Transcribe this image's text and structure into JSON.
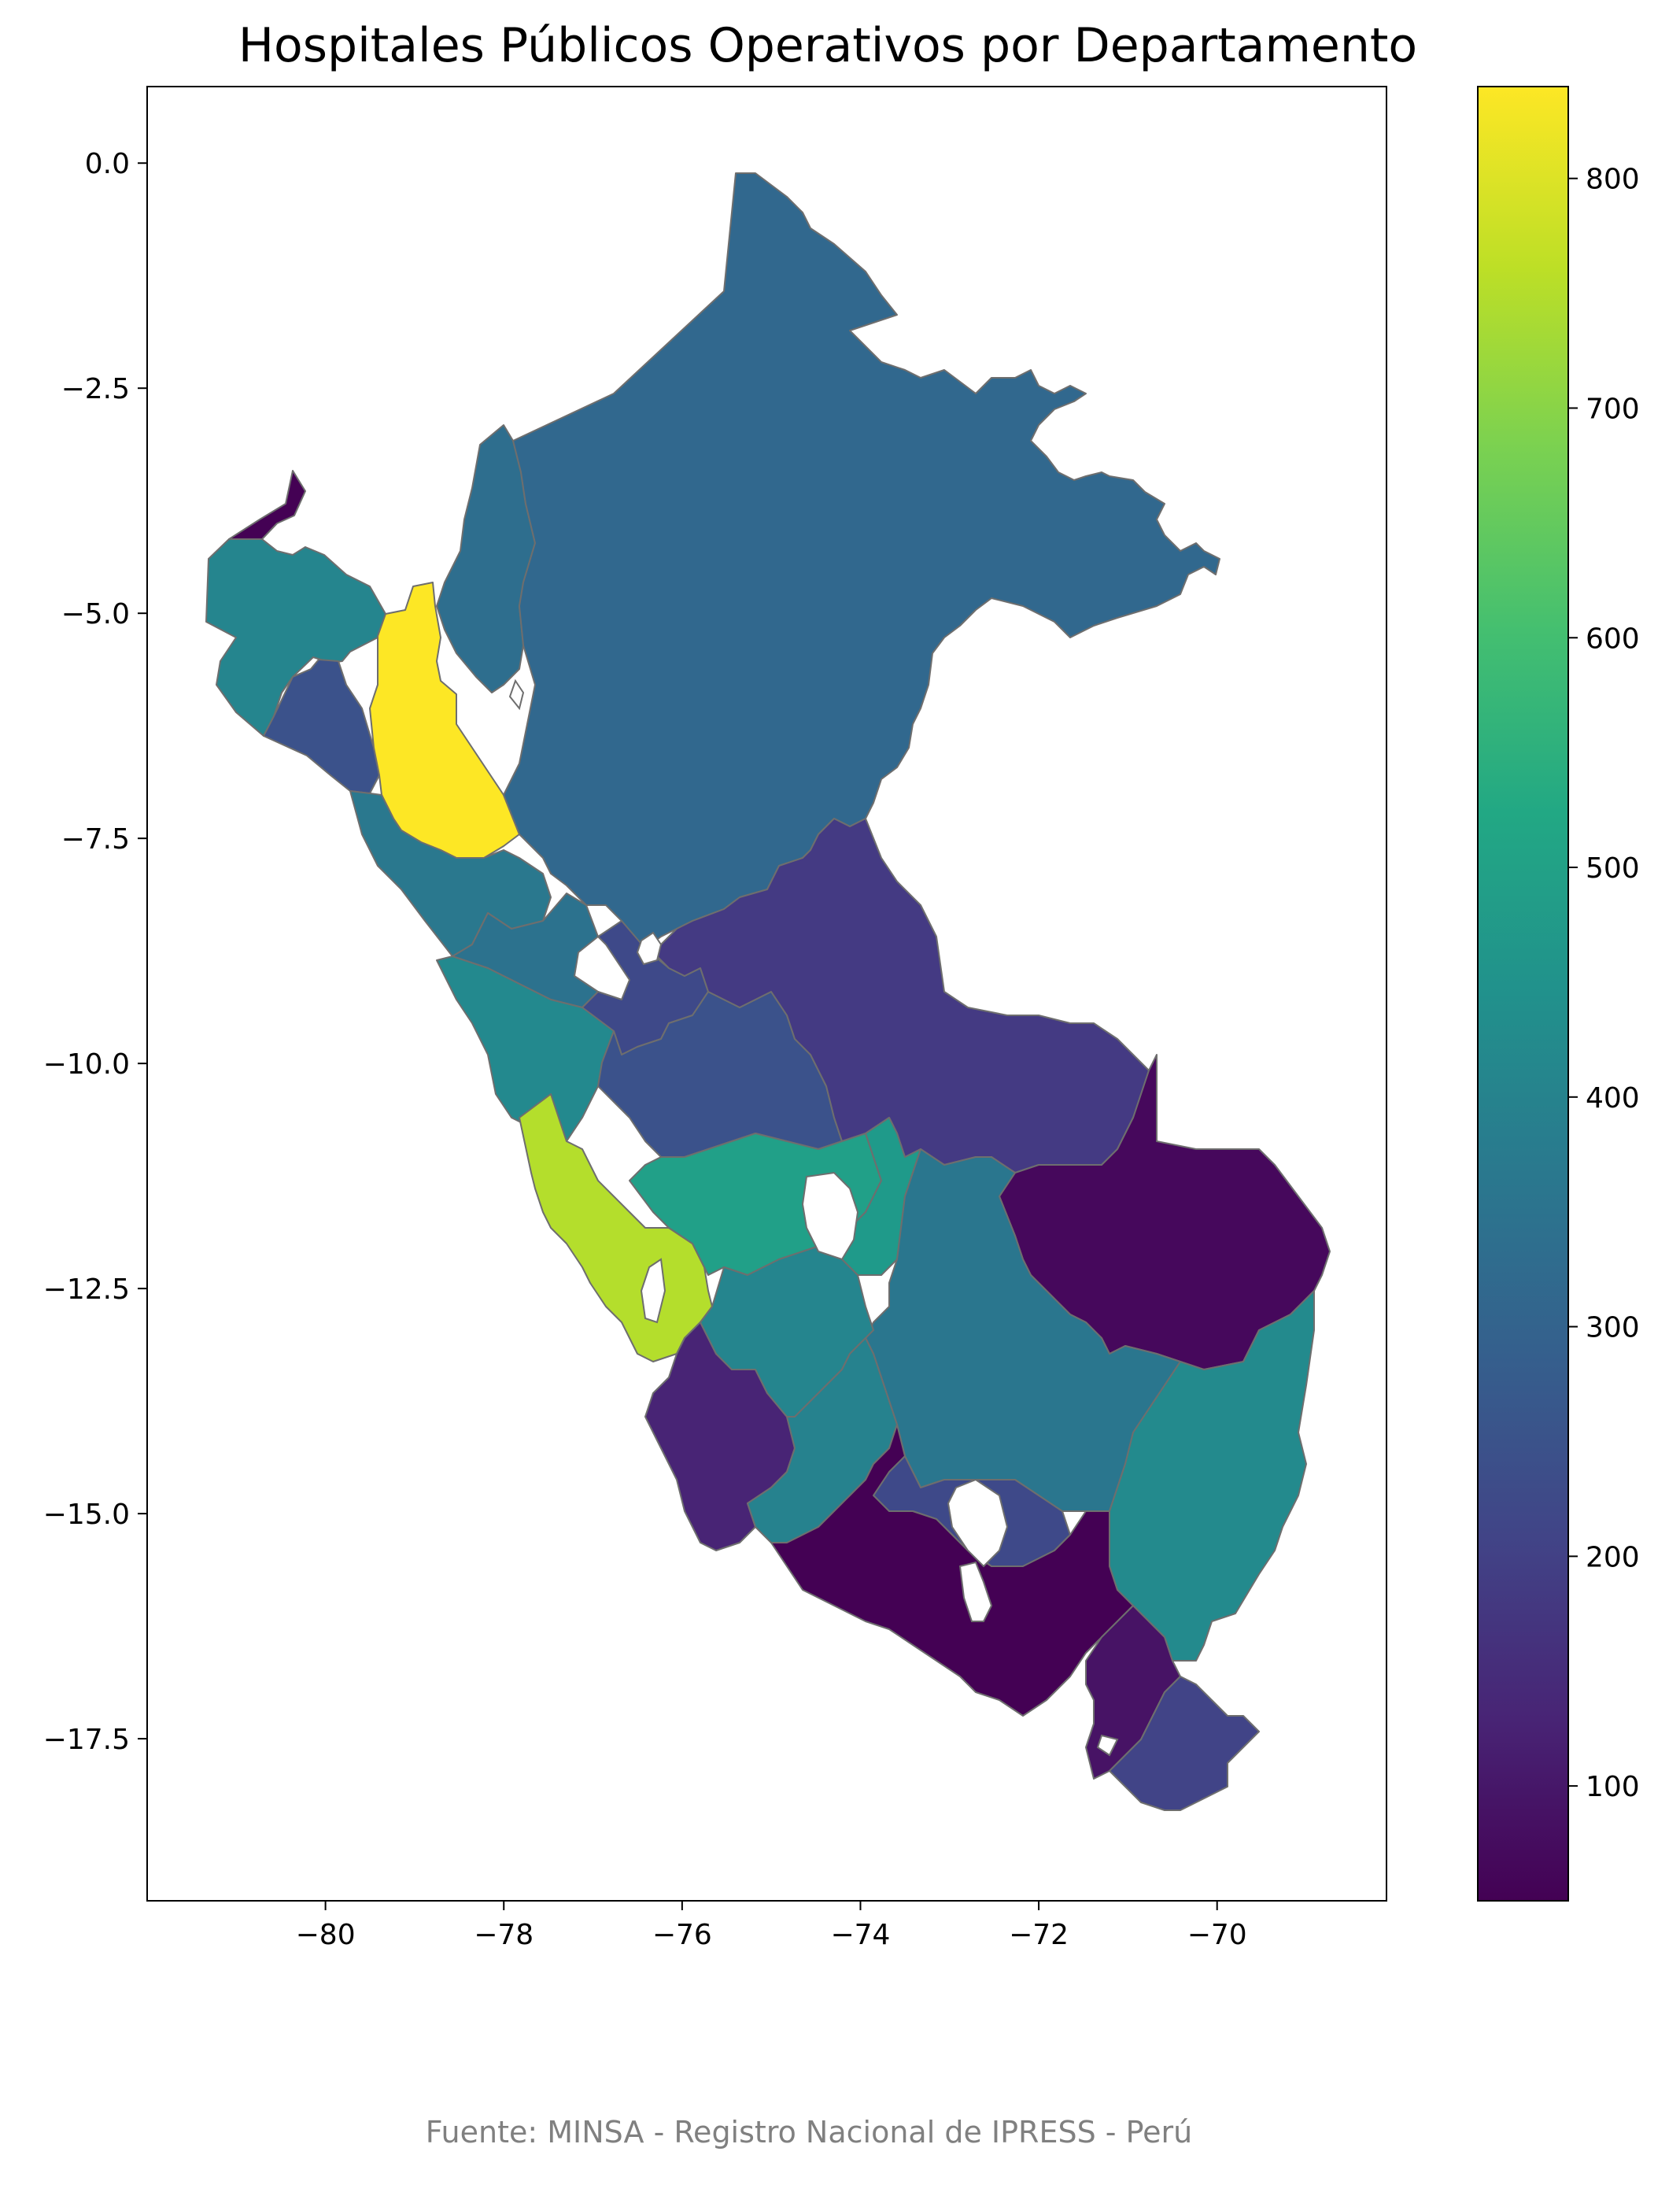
{
  "chart_data": {
    "type": "choropleth",
    "title": "Hospitales Públicos Operativos por Departamento",
    "source_note": "Fuente: MINSA - Registro Nacional de IPRESS - Perú",
    "colormap": "viridis",
    "x_axis": {
      "range": [
        -82.0,
        -68.1
      ],
      "ticks": [
        -80,
        -78,
        -76,
        -74,
        -72,
        -70
      ],
      "tick_labels": [
        "−80",
        "−78",
        "−76",
        "−74",
        "−72",
        "−70"
      ]
    },
    "y_axis": {
      "range": [
        -19.3,
        0.85
      ],
      "ticks": [
        0.0,
        -2.5,
        -5.0,
        -7.5,
        -10.0,
        -12.5,
        -15.0,
        -17.5
      ],
      "tick_labels": [
        "0.0",
        "−2.5",
        "−5.0",
        "−7.5",
        "−10.0",
        "−12.5",
        "−15.0",
        "−17.5"
      ]
    },
    "colorbar": {
      "range": [
        50,
        840
      ],
      "ticks": [
        100,
        200,
        300,
        400,
        500,
        600,
        700,
        800
      ],
      "tick_labels": [
        "100",
        "200",
        "300",
        "400",
        "500",
        "600",
        "700",
        "800"
      ]
    },
    "regions": [
      {
        "value": 60,
        "color": "#440154"
      },
      {
        "value": 375,
        "color": "#25858e"
      },
      {
        "value": 175,
        "color": "#3b528b"
      },
      {
        "value": 840,
        "color": "#fde725"
      },
      {
        "value": 380,
        "color": "#2a788e"
      },
      {
        "value": 310,
        "color": "#2c728e"
      },
      {
        "value": 325,
        "color": "#2e6e8e"
      },
      {
        "value": 285,
        "color": "#31688e"
      },
      {
        "value": 395,
        "color": "#23898e"
      },
      {
        "value": 230,
        "color": "#3e4989"
      },
      {
        "value": 260,
        "color": "#3b528b"
      },
      {
        "value": 190,
        "color": "#443a83"
      },
      {
        "value": 760,
        "color": "#b4de2c"
      },
      {
        "value": 490,
        "color": "#21a088"
      },
      {
        "value": 470,
        "color": "#1f9a8a"
      },
      {
        "value": 55,
        "color": "#46085c"
      },
      {
        "value": 345,
        "color": "#2a768e"
      },
      {
        "value": 150,
        "color": "#482475"
      },
      {
        "value": 395,
        "color": "#25858e"
      },
      {
        "value": 390,
        "color": "#26828e"
      },
      {
        "value": 220,
        "color": "#3e4989"
      },
      {
        "value": 400,
        "color": "#238a8d"
      },
      {
        "value": 60,
        "color": "#440154"
      },
      {
        "value": 90,
        "color": "#471365"
      },
      {
        "value": 200,
        "color": "#414487"
      }
    ]
  }
}
